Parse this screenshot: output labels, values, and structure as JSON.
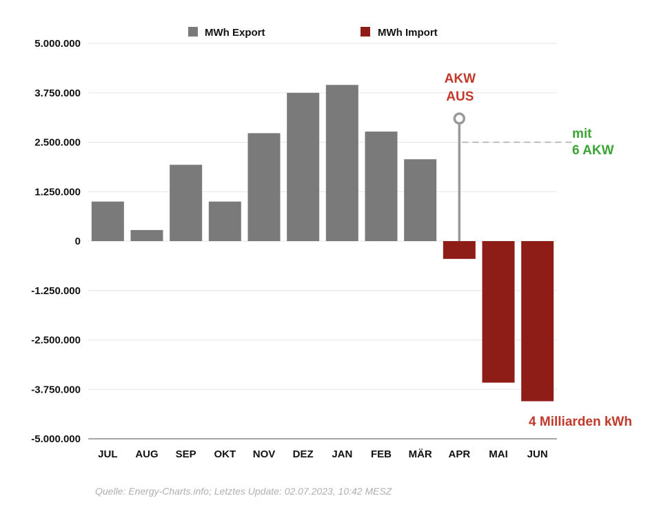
{
  "chart_data": {
    "type": "bar",
    "title": "",
    "xlabel": "",
    "ylabel": "",
    "categories": [
      "JUL",
      "AUG",
      "SEP",
      "OKT",
      "NOV",
      "DEZ",
      "JAN",
      "FEB",
      "MÄR",
      "APR",
      "MAI",
      "JUN"
    ],
    "values": [
      1000000,
      280000,
      1930000,
      1000000,
      2730000,
      3750000,
      3950000,
      2770000,
      2070000,
      -450000,
      -3580000,
      -4050000
    ],
    "series": [
      {
        "name": "MWh Export",
        "color": "#7a7a7a"
      },
      {
        "name": "MWh Import",
        "color": "#8f1d17"
      }
    ],
    "ylim": [
      -5000000,
      5000000
    ],
    "yticks": [
      5000000,
      3750000,
      2500000,
      1250000,
      0,
      -1250000,
      -2500000,
      -3750000,
      -5000000
    ],
    "ytick_labels": [
      "5.000.000",
      "3.750.000",
      "2.500.000",
      "1.250.000",
      "0",
      "-1.250.000",
      "-2.500.000",
      "-3.750.000",
      "-5.000.000"
    ],
    "grid": true,
    "legend_position": "top",
    "annotations": {
      "akw_aus_line1": "AKW",
      "akw_aus_line2": "AUS",
      "akw_aus_category": "APR",
      "akw_aus_marker_top_value": 3100000,
      "reference_value": 2500000,
      "reference_label_line1": "mit",
      "reference_label_line2": "6 AKW",
      "total_label": "4 Milliarden kWh"
    }
  },
  "source_text": "Quelle: Energy-Charts.info; Letztes Update: 02.07.2023, 10:42 MESZ",
  "colors": {
    "export": "#7a7a7a",
    "import": "#8f1d17",
    "annotation_red": "#c0392b",
    "annotation_green": "#3aa534",
    "marker": "#9a9a9a",
    "grid": "#e6e6e6",
    "axis": "#8a8a8a"
  }
}
